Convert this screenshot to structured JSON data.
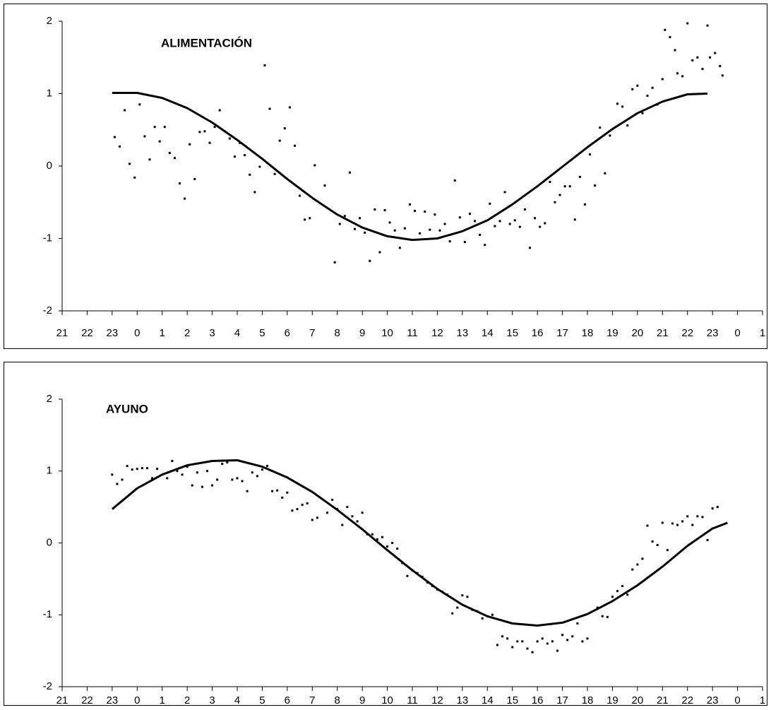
{
  "chart_data": [
    {
      "type": "scatter",
      "annotation": "ALIMENTACIÓN",
      "xlim": [
        0,
        28
      ],
      "ylim": [
        -2,
        2
      ],
      "yticks": [
        -2,
        -1,
        0,
        1,
        2
      ],
      "xticks": [
        {
          "value": 0,
          "label": "21"
        },
        {
          "value": 1,
          "label": "22"
        },
        {
          "value": 2,
          "label": "23"
        },
        {
          "value": 3,
          "label": "0"
        },
        {
          "value": 4,
          "label": "1"
        },
        {
          "value": 5,
          "label": "2"
        },
        {
          "value": 6,
          "label": "3"
        },
        {
          "value": 7,
          "label": "4"
        },
        {
          "value": 8,
          "label": "5"
        },
        {
          "value": 9,
          "label": "6"
        },
        {
          "value": 10,
          "label": "7"
        },
        {
          "value": 11,
          "label": "8"
        },
        {
          "value": 12,
          "label": "9"
        },
        {
          "value": 13,
          "label": "10"
        },
        {
          "value": 14,
          "label": "11"
        },
        {
          "value": 15,
          "label": "12"
        },
        {
          "value": 16,
          "label": "13"
        },
        {
          "value": 17,
          "label": "14"
        },
        {
          "value": 18,
          "label": "15"
        },
        {
          "value": 19,
          "label": "16"
        },
        {
          "value": 20,
          "label": "17"
        },
        {
          "value": 21,
          "label": "18"
        },
        {
          "value": 22,
          "label": "19"
        },
        {
          "value": 23,
          "label": "20"
        },
        {
          "value": 24,
          "label": "21"
        },
        {
          "value": 25,
          "label": "22"
        },
        {
          "value": 26,
          "label": "23"
        },
        {
          "value": 27,
          "label": "0"
        },
        {
          "value": 28,
          "label": "1"
        }
      ],
      "series": [
        {
          "type": "scatter",
          "color": "#000000",
          "x": [
            2.1,
            2.3,
            2.5,
            2.7,
            2.9,
            3.1,
            3.3,
            3.5,
            3.7,
            3.9,
            4.1,
            4.3,
            4.5,
            4.7,
            4.9,
            5.1,
            5.3,
            5.5,
            5.7,
            5.9,
            6.1,
            6.3,
            6.5,
            6.7,
            6.9,
            7.1,
            7.3,
            7.5,
            7.7,
            7.9,
            8.1,
            8.3,
            8.5,
            8.7,
            8.9,
            9.1,
            9.3,
            9.5,
            9.7,
            9.9,
            10.1,
            10.5,
            10.9,
            11.1,
            11.3,
            11.5,
            11.7,
            11.9,
            12.1,
            12.3,
            12.5,
            12.7,
            12.9,
            13.1,
            13.3,
            13.5,
            13.7,
            13.9,
            14.1,
            14.3,
            14.5,
            14.7,
            14.9,
            15.1,
            15.3,
            15.5,
            15.7,
            15.9,
            16.1,
            16.3,
            16.5,
            16.7,
            16.9,
            17.1,
            17.3,
            17.5,
            17.7,
            17.9,
            18.1,
            18.3,
            18.5,
            18.7,
            18.9,
            19.1,
            19.3,
            19.5,
            19.7,
            19.9,
            20.1,
            20.3,
            20.5,
            20.7,
            20.9,
            21.1,
            21.3,
            21.5,
            21.7,
            21.9,
            22.2,
            22.4,
            22.6,
            22.8,
            23.0,
            23.2,
            23.4,
            23.6,
            23.8,
            24.0,
            24.1,
            24.3,
            24.5,
            24.6,
            24.8,
            25.0,
            25.2,
            25.4,
            25.6,
            25.8,
            25.9,
            26.1,
            26.3,
            26.4
          ],
          "values": [
            0.4,
            0.27,
            0.77,
            0.03,
            -0.16,
            0.85,
            0.41,
            0.09,
            0.54,
            0.34,
            0.54,
            0.18,
            0.11,
            -0.24,
            -0.45,
            0.3,
            -0.18,
            0.47,
            0.48,
            0.32,
            0.54,
            0.77,
            0.48,
            0.38,
            0.13,
            0.32,
            0.15,
            -0.12,
            -0.36,
            -0.01,
            1.39,
            0.79,
            -0.11,
            0.35,
            0.52,
            0.81,
            0.28,
            -0.41,
            -0.74,
            -0.72,
            0.01,
            -0.27,
            -1.33,
            -0.8,
            -0.69,
            -0.09,
            -0.87,
            -0.72,
            -0.92,
            -1.31,
            -0.6,
            -1.19,
            -0.61,
            -0.78,
            -0.89,
            -1.13,
            -0.86,
            -0.53,
            -0.62,
            -0.93,
            -0.63,
            -0.88,
            -0.67,
            -0.89,
            -0.8,
            -1.04,
            -0.2,
            -0.71,
            -1.05,
            -0.66,
            -0.76,
            -0.95,
            -1.09,
            -0.52,
            -0.83,
            -0.76,
            -0.36,
            -0.8,
            -0.75,
            -0.84,
            -0.6,
            -1.13,
            -0.72,
            -0.84,
            -0.79,
            -0.22,
            -0.5,
            -0.4,
            -0.28,
            -0.28,
            -0.74,
            -0.15,
            -0.53,
            0.16,
            -0.27,
            0.53,
            -0.1,
            0.42,
            0.86,
            0.82,
            0.56,
            1.06,
            1.11,
            0.73,
            0.97,
            1.08,
            0.85,
            1.2,
            1.88,
            1.78,
            1.6,
            1.28,
            1.24,
            1.97,
            1.46,
            1.5,
            1.34,
            1.94,
            1.5,
            1.56,
            1.38,
            1.25
          ]
        },
        {
          "type": "line",
          "color": "#000000",
          "x": [
            2,
            3,
            4,
            5,
            6,
            7,
            8,
            9,
            10,
            11,
            12,
            13,
            14,
            15,
            16,
            17,
            18,
            19,
            20,
            21,
            22,
            23,
            24,
            25,
            25.8
          ],
          "values": [
            1.01,
            1.01,
            0.94,
            0.8,
            0.6,
            0.36,
            0.1,
            -0.18,
            -0.44,
            -0.67,
            -0.85,
            -0.97,
            -1.02,
            -1.0,
            -0.9,
            -0.75,
            -0.53,
            -0.28,
            -0.01,
            0.26,
            0.51,
            0.73,
            0.89,
            0.99,
            1.0
          ]
        }
      ]
    },
    {
      "type": "scatter",
      "annotation": "AYUNO",
      "xlim": [
        0,
        28
      ],
      "ylim": [
        -2,
        2
      ],
      "yticks": [
        -2,
        -1,
        0,
        1,
        2
      ],
      "xticks": [
        {
          "value": 0,
          "label": "21"
        },
        {
          "value": 1,
          "label": "22"
        },
        {
          "value": 2,
          "label": "23"
        },
        {
          "value": 3,
          "label": "0"
        },
        {
          "value": 4,
          "label": "1"
        },
        {
          "value": 5,
          "label": "2"
        },
        {
          "value": 6,
          "label": "3"
        },
        {
          "value": 7,
          "label": "4"
        },
        {
          "value": 8,
          "label": "5"
        },
        {
          "value": 9,
          "label": "6"
        },
        {
          "value": 10,
          "label": "7"
        },
        {
          "value": 11,
          "label": "8"
        },
        {
          "value": 12,
          "label": "9"
        },
        {
          "value": 13,
          "label": "10"
        },
        {
          "value": 14,
          "label": "11"
        },
        {
          "value": 15,
          "label": "12"
        },
        {
          "value": 16,
          "label": "13"
        },
        {
          "value": 17,
          "label": "14"
        },
        {
          "value": 18,
          "label": "15"
        },
        {
          "value": 19,
          "label": "16"
        },
        {
          "value": 20,
          "label": "17"
        },
        {
          "value": 21,
          "label": "18"
        },
        {
          "value": 22,
          "label": "19"
        },
        {
          "value": 23,
          "label": "20"
        },
        {
          "value": 24,
          "label": "21"
        },
        {
          "value": 25,
          "label": "22"
        },
        {
          "value": 26,
          "label": "23"
        },
        {
          "value": 27,
          "label": "0"
        },
        {
          "value": 28,
          "label": "1"
        }
      ],
      "series": [
        {
          "type": "scatter",
          "color": "#000000",
          "x": [
            2.0,
            2.2,
            2.4,
            2.6,
            2.8,
            3.0,
            3.2,
            3.4,
            3.6,
            3.8,
            4.2,
            4.4,
            4.6,
            4.8,
            5.0,
            5.2,
            5.4,
            5.6,
            5.8,
            6.0,
            6.2,
            6.4,
            6.6,
            6.8,
            7.0,
            7.2,
            7.4,
            7.6,
            7.8,
            8.0,
            8.2,
            8.4,
            8.6,
            8.8,
            9.0,
            9.2,
            9.4,
            9.6,
            9.8,
            10.0,
            10.2,
            10.6,
            10.8,
            11.0,
            11.2,
            11.4,
            11.6,
            11.8,
            12.0,
            12.2,
            12.4,
            12.6,
            12.8,
            13.0,
            13.2,
            13.4,
            13.6,
            13.8,
            14.0,
            14.2,
            14.4,
            14.6,
            14.8,
            15.0,
            15.2,
            15.4,
            15.6,
            15.8,
            16.0,
            16.2,
            16.4,
            16.6,
            16.8,
            17.0,
            17.2,
            17.4,
            17.6,
            17.8,
            18.0,
            18.2,
            18.4,
            18.6,
            18.8,
            19.0,
            19.2,
            19.4,
            19.6,
            19.8,
            20.0,
            20.2,
            20.4,
            20.6,
            20.8,
            21.0,
            21.4,
            21.6,
            21.8,
            22.0,
            22.2,
            22.4,
            22.6,
            22.8,
            23.0,
            23.2,
            23.4,
            23.6,
            23.8,
            24.0,
            24.2,
            24.4,
            24.6,
            24.8,
            25.0,
            25.2,
            25.4,
            25.6,
            25.8,
            26.0,
            26.2
          ],
          "values": [
            0.95,
            0.82,
            0.88,
            1.07,
            1.02,
            1.03,
            1.04,
            1.04,
            0.9,
            1.03,
            0.9,
            1.14,
            1.0,
            0.95,
            1.06,
            0.8,
            0.98,
            0.78,
            1.0,
            0.8,
            0.88,
            1.1,
            1.12,
            0.88,
            0.9,
            0.86,
            0.72,
            0.98,
            0.93,
            1.02,
            1.07,
            0.72,
            0.73,
            0.63,
            0.7,
            0.45,
            0.47,
            0.53,
            0.55,
            0.32,
            0.35,
            0.42,
            0.6,
            0.47,
            0.25,
            0.5,
            0.37,
            0.3,
            0.42,
            0.12,
            0.12,
            0.05,
            0.08,
            -0.05,
            0.0,
            -0.08,
            -0.28,
            -0.46,
            -0.38,
            -0.42,
            -0.47,
            -0.55,
            -0.6,
            -0.65,
            -0.68,
            -0.72,
            -0.98,
            -0.9,
            -0.73,
            -0.75,
            -0.93,
            -0.95,
            -1.05,
            -1.02,
            -1.0,
            -1.42,
            -1.3,
            -1.33,
            -1.45,
            -1.37,
            -1.37,
            -1.47,
            -1.52,
            -1.37,
            -1.33,
            -1.4,
            -1.37,
            -1.5,
            -1.28,
            -1.35,
            -1.3,
            -1.12,
            -1.37,
            -1.33,
            -0.9,
            -1.02,
            -1.03,
            -0.75,
            -0.67,
            -0.6,
            -0.72,
            -0.37,
            -0.3,
            -0.22,
            0.24,
            0.02,
            -0.03,
            0.28,
            -0.1,
            0.27,
            0.25,
            0.3,
            0.37,
            0.25,
            0.37,
            0.36,
            0.04,
            0.48,
            0.5
          ]
        },
        {
          "type": "line",
          "color": "#000000",
          "x": [
            2,
            3,
            4,
            5,
            6,
            7,
            8,
            9,
            10,
            11,
            12,
            13,
            14,
            15,
            16,
            17,
            18,
            19,
            20,
            21,
            22,
            23,
            24,
            25,
            26,
            26.6
          ],
          "values": [
            0.47,
            0.76,
            0.95,
            1.08,
            1.14,
            1.15,
            1.06,
            0.91,
            0.71,
            0.46,
            0.19,
            -0.1,
            -0.38,
            -0.64,
            -0.86,
            -1.02,
            -1.12,
            -1.15,
            -1.11,
            -0.99,
            -0.81,
            -0.59,
            -0.33,
            -0.04,
            0.2,
            0.28
          ]
        }
      ]
    }
  ]
}
